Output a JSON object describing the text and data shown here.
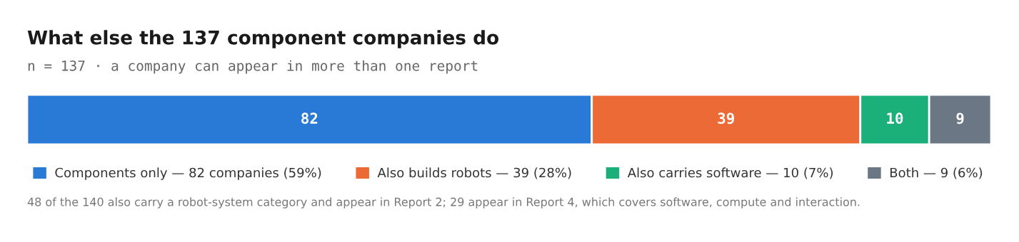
{
  "chart_data": {
    "type": "bar",
    "orientation": "horizontal",
    "stacked": true,
    "title": "What else the 137 component companies do",
    "subtitle": "n = 137 · a company can appear in more than one report",
    "categories": [
      null
    ],
    "series": [
      {
        "name": "Components only — 82 companies (59%)",
        "color": "#2979d6",
        "values": [
          82
        ]
      },
      {
        "name": "Also builds robots — 39 (28%)",
        "color": "#ec6a35",
        "values": [
          39
        ]
      },
      {
        "name": "Also carries software — 10 (7%)",
        "color": "#1bb07a",
        "values": [
          10
        ]
      },
      {
        "name": "Both — 9 (6%)",
        "color": "#6b7785",
        "values": [
          9
        ]
      }
    ],
    "data_labels": true,
    "legend": "bottom",
    "annotations": [
      "48 of the 140 also carry a robot-system category and appear in Report 2; 29 appear in Report 4, which covers software, compute and interaction."
    ]
  }
}
